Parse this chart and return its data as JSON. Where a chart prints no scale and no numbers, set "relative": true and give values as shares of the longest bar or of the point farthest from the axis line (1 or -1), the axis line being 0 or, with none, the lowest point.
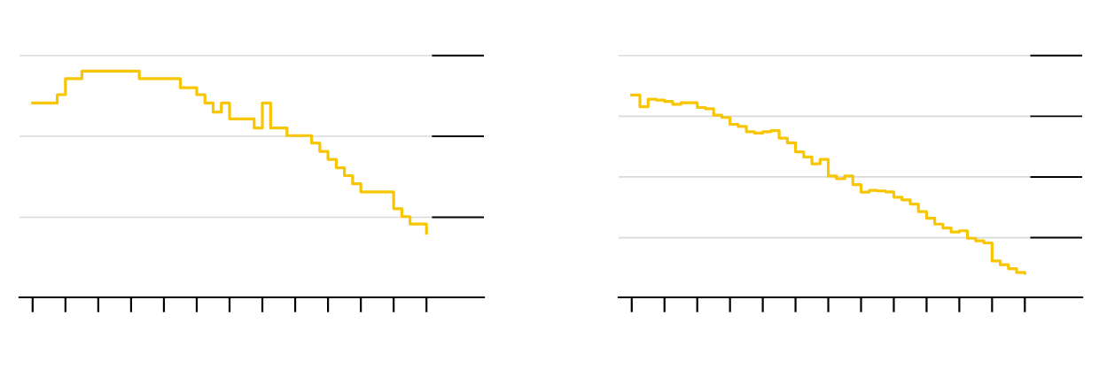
{
  "chart_data": [
    {
      "type": "step",
      "relative": true,
      "categories": [
        null,
        null,
        null,
        null,
        null,
        null,
        null,
        null,
        null,
        null,
        null,
        null,
        null,
        null,
        null,
        null,
        null,
        null,
        null,
        null,
        null,
        null,
        null,
        null,
        null,
        null,
        null,
        null,
        null,
        null,
        null,
        null,
        null,
        null,
        null,
        null,
        null,
        null,
        null,
        null,
        null,
        null,
        null,
        null,
        null,
        null,
        null,
        null,
        null
      ],
      "ref_lines": [
        {
          "axis": "y",
          "value": 0.354,
          "color": "#d9d9d9"
        },
        {
          "axis": "y",
          "value": 0.712,
          "color": "#d9d9d9"
        },
        {
          "axis": "y",
          "value": 1.069,
          "color": "#d9d9d9"
        }
      ],
      "series": [
        {
          "color": "#f7c600",
          "values": [
            0.859,
            0.859,
            0.859,
            0.896,
            0.967,
            0.967,
            1.0,
            1.0,
            1.0,
            1.0,
            1.0,
            1.0,
            1.0,
            0.967,
            0.967,
            0.967,
            0.967,
            0.967,
            0.927,
            0.927,
            0.896,
            0.859,
            0.819,
            0.859,
            0.789,
            0.789,
            0.789,
            0.749,
            0.859,
            0.749,
            0.749,
            0.715,
            0.715,
            0.715,
            0.682,
            0.645,
            0.61,
            0.573,
            0.538,
            0.502,
            0.466,
            0.466,
            0.466,
            0.466,
            0.392,
            0.357,
            0.324,
            0.324,
            0.284
          ]
        }
      ]
    },
    {
      "type": "step",
      "relative": true,
      "categories": [
        null,
        null,
        null,
        null,
        null,
        null,
        null,
        null,
        null,
        null,
        null,
        null,
        null,
        null,
        null,
        null,
        null,
        null,
        null,
        null,
        null,
        null,
        null,
        null,
        null,
        null,
        null,
        null,
        null,
        null,
        null,
        null,
        null,
        null,
        null,
        null,
        null,
        null,
        null,
        null,
        null,
        null,
        null,
        null,
        null,
        null,
        null,
        null,
        null
      ],
      "ref_lines": [
        {
          "axis": "y",
          "value": 0.295,
          "color": "#d9d9d9"
        },
        {
          "axis": "y",
          "value": 0.595,
          "color": "#d9d9d9"
        },
        {
          "axis": "y",
          "value": 0.895,
          "color": "#d9d9d9"
        },
        {
          "axis": "y",
          "value": 1.195,
          "color": "#d9d9d9"
        }
      ],
      "series": [
        {
          "color": "#f7c600",
          "values": [
            1.0,
            0.942,
            0.979,
            0.975,
            0.968,
            0.954,
            0.962,
            0.962,
            0.938,
            0.932,
            0.9,
            0.889,
            0.855,
            0.845,
            0.818,
            0.812,
            0.818,
            0.824,
            0.787,
            0.764,
            0.719,
            0.694,
            0.66,
            0.682,
            0.6,
            0.586,
            0.6,
            0.557,
            0.52,
            0.529,
            0.526,
            0.521,
            0.495,
            0.482,
            0.461,
            0.424,
            0.391,
            0.362,
            0.343,
            0.323,
            0.329,
            0.292,
            0.279,
            0.269,
            0.18,
            0.161,
            0.142,
            0.123,
            0.118
          ]
        }
      ]
    }
  ]
}
